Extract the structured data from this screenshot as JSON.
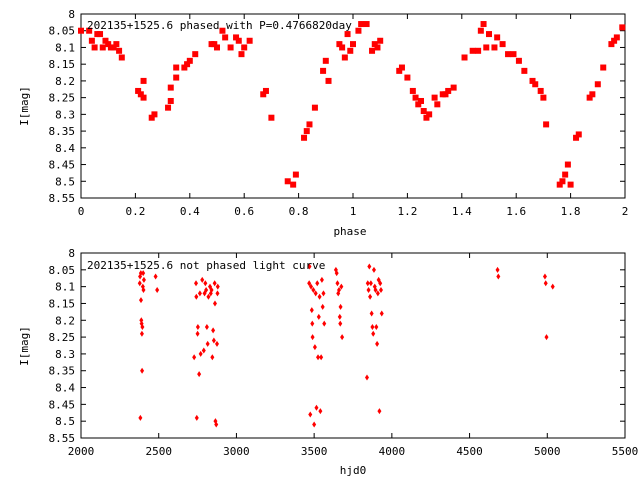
{
  "chart_data": [
    {
      "type": "scatter",
      "title": "202135+1525.6 phased with P=0.4766820day",
      "xlabel": "phase",
      "ylabel": "I[mag]",
      "xlim": [
        0,
        2
      ],
      "ylim": [
        8.55,
        8.0
      ],
      "y_inverted": true,
      "xticks": [
        "0",
        "0.2",
        "0.4",
        "0.6",
        "0.8",
        "1",
        "1.2",
        "1.4",
        "1.6",
        "1.8",
        "2"
      ],
      "yticks": [
        "8",
        "8.05",
        "8.1",
        "8.15",
        "8.2",
        "8.25",
        "8.3",
        "8.35",
        "8.4",
        "8.45",
        "8.5",
        "8.55"
      ],
      "marker": "square",
      "color": "#ff0000",
      "series": [
        {
          "x": [
            0.0,
            0.03,
            0.04,
            0.05,
            0.06,
            0.07,
            0.08,
            0.09,
            0.1,
            0.11,
            0.12,
            0.13,
            0.14,
            0.15,
            0.21,
            0.22,
            0.23,
            0.23,
            0.26,
            0.27,
            0.32,
            0.33,
            0.33,
            0.35,
            0.35,
            0.38,
            0.39,
            0.4,
            0.42,
            0.48,
            0.49,
            0.5,
            0.52,
            0.53,
            0.55,
            0.57,
            0.58,
            0.59,
            0.6,
            0.62,
            0.67,
            0.68,
            0.7,
            0.76,
            0.78,
            0.79,
            0.82,
            0.83,
            0.84,
            0.86,
            0.89,
            0.9,
            0.91,
            0.95,
            0.96,
            0.97,
            0.98,
            0.99,
            1.0,
            1.02,
            1.03,
            1.05,
            1.07,
            1.08,
            1.09,
            1.1,
            1.17,
            1.18,
            1.2,
            1.22,
            1.23,
            1.24,
            1.25,
            1.26,
            1.27,
            1.28,
            1.3,
            1.31,
            1.33,
            1.34,
            1.35,
            1.37,
            1.41,
            1.44,
            1.46,
            1.47,
            1.48,
            1.49,
            1.5,
            1.52,
            1.53,
            1.55,
            1.57,
            1.59,
            1.61,
            1.63,
            1.66,
            1.67,
            1.69,
            1.7,
            1.71,
            1.76,
            1.77,
            1.78,
            1.79,
            1.8,
            1.82,
            1.83,
            1.87,
            1.88,
            1.9,
            1.92,
            1.95,
            1.96,
            1.97,
            1.99
          ],
          "y": [
            8.05,
            8.05,
            8.08,
            8.1,
            8.06,
            8.06,
            8.1,
            8.08,
            8.09,
            8.1,
            8.1,
            8.09,
            8.11,
            8.13,
            8.23,
            8.24,
            8.2,
            8.25,
            8.31,
            8.3,
            8.28,
            8.22,
            8.26,
            8.16,
            8.19,
            8.16,
            8.15,
            8.14,
            8.12,
            8.09,
            8.09,
            8.1,
            8.05,
            8.07,
            8.1,
            8.07,
            8.08,
            8.12,
            8.1,
            8.08,
            8.24,
            8.23,
            8.31,
            8.5,
            8.51,
            8.48,
            8.37,
            8.35,
            8.33,
            8.28,
            8.17,
            8.14,
            8.2,
            8.09,
            8.1,
            8.13,
            8.06,
            8.11,
            8.09,
            8.05,
            8.03,
            8.03,
            8.11,
            8.09,
            8.1,
            8.08,
            8.17,
            8.16,
            8.19,
            8.23,
            8.25,
            8.27,
            8.26,
            8.29,
            8.31,
            8.3,
            8.25,
            8.27,
            8.24,
            8.24,
            8.23,
            8.22,
            8.13,
            8.11,
            8.11,
            8.05,
            8.03,
            8.1,
            8.06,
            8.1,
            8.07,
            8.09,
            8.12,
            8.12,
            8.14,
            8.17,
            8.2,
            8.21,
            8.23,
            8.25,
            8.33,
            8.51,
            8.5,
            8.48,
            8.45,
            8.51,
            8.37,
            8.36,
            8.25,
            8.24,
            8.21,
            8.16,
            8.09,
            8.08,
            8.07,
            8.04
          ]
        }
      ]
    },
    {
      "type": "scatter",
      "title": "202135+1525.6 not phased light curve",
      "xlabel": "hjd0",
      "ylabel": "I[mag]",
      "xlim": [
        2000,
        5500
      ],
      "ylim": [
        8.55,
        8.0
      ],
      "y_inverted": true,
      "xticks": [
        "2000",
        "2500",
        "3000",
        "3500",
        "4000",
        "4500",
        "5000",
        "5500"
      ],
      "yticks": [
        "8",
        "8.05",
        "8.1",
        "8.15",
        "8.2",
        "8.25",
        "8.3",
        "8.35",
        "8.4",
        "8.45",
        "8.5",
        "8.55"
      ],
      "marker": "diamond",
      "color": "#ff0000",
      "series": [
        {
          "x": [
            2378,
            2380,
            2382,
            2385,
            2386,
            2388,
            2390,
            2392,
            2393,
            2395,
            2398,
            2400,
            2402,
            2405,
            2480,
            2490,
            2728,
            2740,
            2742,
            2745,
            2750,
            2752,
            2760,
            2765,
            2770,
            2780,
            2790,
            2795,
            2800,
            2805,
            2810,
            2815,
            2820,
            2830,
            2835,
            2840,
            2845,
            2850,
            2855,
            2860,
            2862,
            2865,
            2870,
            2875,
            2878,
            2880,
            3468,
            3470,
            3475,
            3480,
            3485,
            3488,
            3490,
            3495,
            3500,
            3505,
            3510,
            3515,
            3520,
            3525,
            3530,
            3535,
            3540,
            3545,
            3550,
            3555,
            3560,
            3565,
            3640,
            3645,
            3650,
            3655,
            3660,
            3665,
            3668,
            3670,
            3675,
            3680,
            3840,
            3845,
            3850,
            3855,
            3860,
            3865,
            3870,
            3875,
            3880,
            3885,
            3890,
            3895,
            3900,
            3905,
            3910,
            3915,
            3920,
            3925,
            3930,
            3935,
            4680,
            4685,
            4985,
            4990,
            4995,
            5035
          ],
          "y": [
            8.09,
            8.07,
            8.49,
            8.06,
            8.14,
            8.2,
            8.21,
            8.24,
            8.35,
            8.22,
            8.1,
            8.06,
            8.11,
            8.08,
            8.07,
            8.11,
            8.31,
            8.09,
            8.13,
            8.49,
            8.24,
            8.22,
            8.36,
            8.12,
            8.3,
            8.08,
            8.29,
            8.12,
            8.09,
            8.11,
            8.22,
            8.27,
            8.13,
            8.1,
            8.12,
            8.11,
            8.31,
            8.23,
            8.26,
            8.09,
            8.15,
            8.5,
            8.51,
            8.27,
            8.12,
            8.1,
            8.09,
            8.04,
            8.48,
            8.1,
            8.17,
            8.21,
            8.25,
            8.11,
            8.51,
            8.28,
            8.12,
            8.46,
            8.09,
            8.31,
            8.19,
            8.13,
            8.47,
            8.31,
            8.08,
            8.16,
            8.12,
            8.21,
            8.05,
            8.06,
            8.09,
            8.12,
            8.11,
            8.19,
            8.21,
            8.16,
            8.1,
            8.25,
            8.37,
            8.09,
            8.11,
            8.04,
            8.13,
            8.09,
            8.18,
            8.22,
            8.24,
            8.05,
            8.1,
            8.11,
            8.22,
            8.27,
            8.12,
            8.08,
            8.47,
            8.09,
            8.11,
            8.18,
            8.05,
            8.07,
            8.07,
            8.09,
            8.25,
            8.1
          ]
        }
      ]
    }
  ]
}
